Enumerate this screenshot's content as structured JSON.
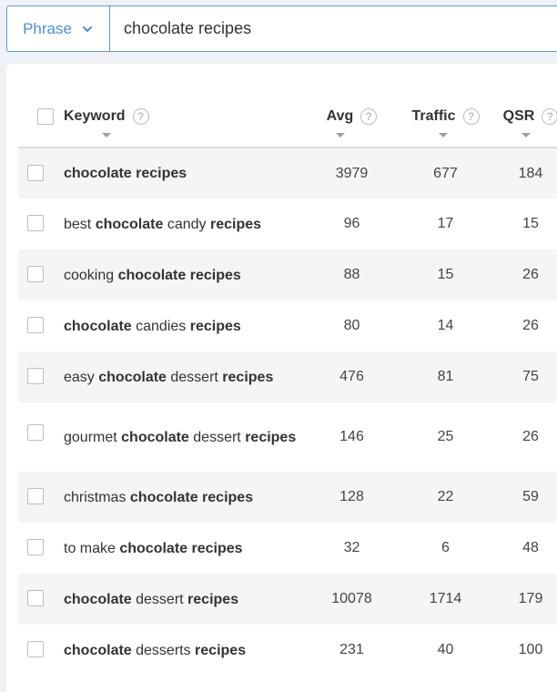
{
  "search": {
    "mode_label": "Phrase",
    "query": "chocolate recipes"
  },
  "table": {
    "headers": {
      "keyword": "Keyword",
      "avg": "Avg",
      "traffic": "Traffic",
      "qsr": "QSR"
    },
    "rows": [
      {
        "keyword_parts": [
          {
            "t": "chocolate",
            "b": true
          },
          {
            "t": " "
          },
          {
            "t": "recipes",
            "b": true
          }
        ],
        "avg": "3979",
        "traffic": "677",
        "qsr": "184"
      },
      {
        "keyword_parts": [
          {
            "t": "best "
          },
          {
            "t": "chocolate",
            "b": true
          },
          {
            "t": " candy "
          },
          {
            "t": "recipes",
            "b": true
          }
        ],
        "avg": "96",
        "traffic": "17",
        "qsr": "15"
      },
      {
        "keyword_parts": [
          {
            "t": "cooking "
          },
          {
            "t": "chocolate",
            "b": true
          },
          {
            "t": " "
          },
          {
            "t": "recipes",
            "b": true
          }
        ],
        "avg": "88",
        "traffic": "15",
        "qsr": "26"
      },
      {
        "keyword_parts": [
          {
            "t": "chocolate",
            "b": true
          },
          {
            "t": " candies "
          },
          {
            "t": "recipes",
            "b": true
          }
        ],
        "avg": "80",
        "traffic": "14",
        "qsr": "26"
      },
      {
        "keyword_parts": [
          {
            "t": "easy "
          },
          {
            "t": "chocolate",
            "b": true
          },
          {
            "t": " dessert "
          },
          {
            "t": "recipes",
            "b": true
          }
        ],
        "avg": "476",
        "traffic": "81",
        "qsr": "75"
      },
      {
        "keyword_parts": [
          {
            "t": "gourmet "
          },
          {
            "t": "chocolate",
            "b": true
          },
          {
            "t": " dessert "
          },
          {
            "t": "recipes",
            "b": true
          }
        ],
        "avg": "146",
        "traffic": "25",
        "qsr": "26",
        "tall": true
      },
      {
        "keyword_parts": [
          {
            "t": "christmas "
          },
          {
            "t": "chocolate",
            "b": true
          },
          {
            "t": " "
          },
          {
            "t": "recipes",
            "b": true
          }
        ],
        "avg": "128",
        "traffic": "22",
        "qsr": "59"
      },
      {
        "keyword_parts": [
          {
            "t": "to make "
          },
          {
            "t": "chocolate",
            "b": true
          },
          {
            "t": " "
          },
          {
            "t": "recipes",
            "b": true
          }
        ],
        "avg": "32",
        "traffic": "6",
        "qsr": "48"
      },
      {
        "keyword_parts": [
          {
            "t": "chocolate",
            "b": true
          },
          {
            "t": " dessert "
          },
          {
            "t": "recipes",
            "b": true
          }
        ],
        "avg": "10078",
        "traffic": "1714",
        "qsr": "179"
      },
      {
        "keyword_parts": [
          {
            "t": "chocolate",
            "b": true
          },
          {
            "t": " desserts "
          },
          {
            "t": "recipes",
            "b": true
          }
        ],
        "avg": "231",
        "traffic": "40",
        "qsr": "100"
      }
    ]
  }
}
